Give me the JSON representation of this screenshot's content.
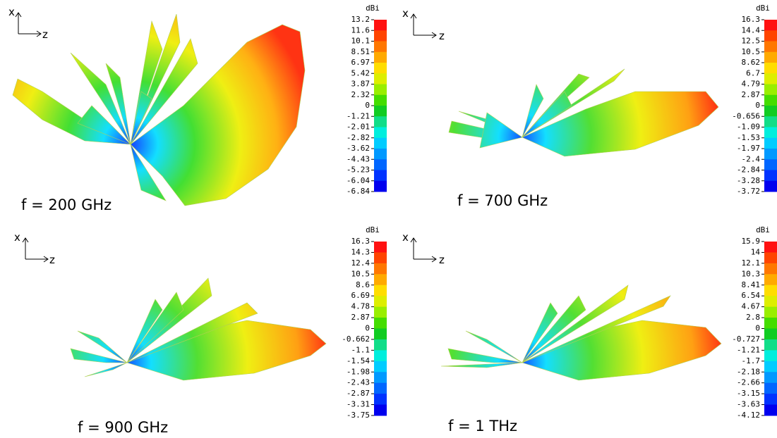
{
  "panels": [
    {
      "axis_x": "x",
      "axis_z": "z",
      "frequency_label": "f = 200 GHz",
      "colorbar": {
        "unit": "dBi",
        "ticks": [
          13.2,
          11.6,
          10.1,
          8.51,
          6.97,
          5.42,
          3.87,
          2.32,
          0,
          -1.21,
          -2.01,
          -2.82,
          -3.62,
          -4.43,
          -5.23,
          -6.04,
          -6.84
        ]
      }
    },
    {
      "axis_x": "x",
      "axis_z": "z",
      "frequency_label": "f = 700 GHz",
      "colorbar": {
        "unit": "dBi",
        "ticks": [
          16.3,
          14.4,
          12.5,
          10.5,
          8.62,
          6.7,
          4.79,
          2.87,
          0,
          -0.656,
          -1.09,
          -1.53,
          -1.97,
          -2.4,
          -2.84,
          -3.28,
          -3.72
        ]
      }
    },
    {
      "axis_x": "x",
      "axis_z": "z",
      "frequency_label": "f = 900 GHz",
      "colorbar": {
        "unit": "dBi",
        "ticks": [
          16.3,
          14.3,
          12.4,
          10.5,
          8.6,
          6.69,
          4.78,
          2.87,
          0,
          -0.662,
          -1.1,
          -1.54,
          -1.98,
          -2.43,
          -2.87,
          -3.31,
          -3.75
        ]
      }
    },
    {
      "axis_x": "x",
      "axis_z": "z",
      "frequency_label": "f = 1 THz",
      "colorbar": {
        "unit": "dBi",
        "ticks": [
          15.9,
          14,
          12.1,
          10.3,
          8.41,
          6.54,
          4.67,
          2.8,
          0,
          -0.727,
          -1.21,
          -1.7,
          -2.18,
          -2.66,
          -3.15,
          -3.63,
          -4.12
        ]
      }
    }
  ]
}
